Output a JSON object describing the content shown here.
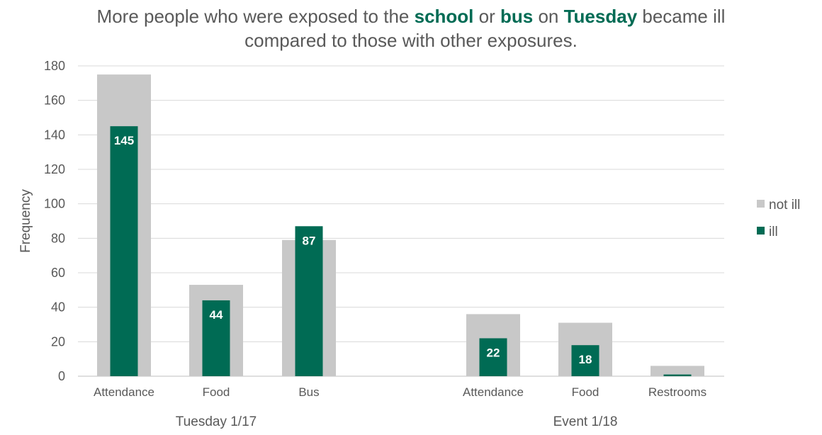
{
  "title": {
    "segments": [
      {
        "text": "More people who were exposed to the ",
        "highlight": false
      },
      {
        "text": "school",
        "highlight": true
      },
      {
        "text": " or ",
        "highlight": false
      },
      {
        "text": "bus",
        "highlight": true
      },
      {
        "text": " on ",
        "highlight": false
      },
      {
        "text": "Tuesday",
        "highlight": true
      },
      {
        "text": " became ill",
        "highlight": false
      },
      {
        "text": "\ncompared to those with other exposures.",
        "highlight": false
      }
    ]
  },
  "colors": {
    "not_ill": "#c8c8c8",
    "ill": "#006b54",
    "grid": "#d9d9d9",
    "axis": "#bfbfbf",
    "highlight": "#006b54"
  },
  "chart_data": {
    "type": "bar",
    "ylabel": "Frequency",
    "ylim": [
      0,
      180
    ],
    "yticks": [
      0,
      20,
      40,
      60,
      80,
      100,
      120,
      140,
      160,
      180
    ],
    "grid": true,
    "legend_position": "right",
    "groups": [
      {
        "label": "Tuesday 1/17",
        "categories": [
          "Attendance",
          "Food",
          "Bus"
        ]
      },
      {
        "label": "Event 1/18",
        "categories": [
          "Attendance",
          "Food",
          "Restrooms"
        ]
      }
    ],
    "categories": [
      "Attendance",
      "Food",
      "Bus",
      "Attendance",
      "Food",
      "Restrooms"
    ],
    "series": [
      {
        "name": "not ill",
        "values": [
          175,
          53,
          79,
          36,
          31,
          6
        ]
      },
      {
        "name": "ill",
        "values": [
          145,
          44,
          87,
          22,
          18,
          1
        ]
      }
    ],
    "data_labels": [
      "145",
      "44",
      "87",
      "22",
      "18",
      ""
    ]
  }
}
